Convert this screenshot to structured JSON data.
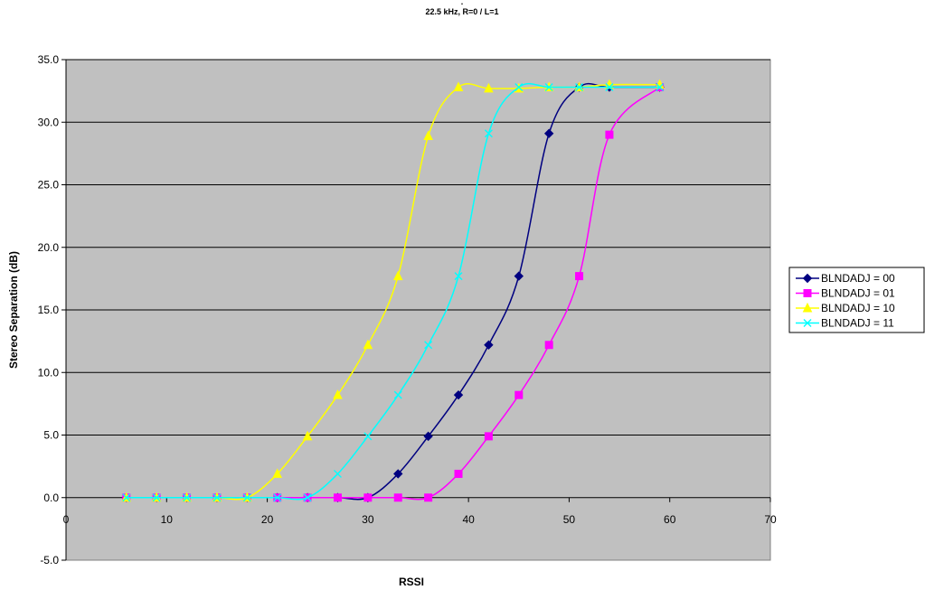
{
  "chart_data": {
    "type": "line",
    "title": ".",
    "subtitle": "22.5 kHz, R=0 / L=1",
    "xlabel": "RSSI",
    "ylabel": "Stereo Separation (dB)",
    "xlim": [
      0,
      70
    ],
    "ylim": [
      -5,
      35
    ],
    "x_ticks": [
      0,
      10,
      20,
      30,
      40,
      50,
      60,
      70
    ],
    "y_ticks": [
      -5,
      0,
      5,
      10,
      15,
      20,
      25,
      30,
      35
    ],
    "x_tick_labels": [
      "0",
      "10",
      "20",
      "30",
      "40",
      "50",
      "60",
      "70"
    ],
    "y_tick_labels": [
      "-5.0",
      "0.0",
      "5.0",
      "10.0",
      "15.0",
      "20.0",
      "25.0",
      "30.0",
      "35.0"
    ],
    "grid": "horizontal",
    "legend_position": "right",
    "plot_background": "#c0c0c0",
    "series": [
      {
        "name": "BLNDADJ = 00",
        "color": "#000080",
        "marker": "diamond",
        "x": [
          6,
          9,
          12,
          15,
          18,
          21,
          24,
          27,
          30,
          33,
          36,
          39,
          42,
          45,
          48,
          51,
          54,
          59
        ],
        "y": [
          0,
          0,
          0,
          0,
          0,
          0,
          0,
          0,
          0,
          1.9,
          4.9,
          8.2,
          12.2,
          17.7,
          29.1,
          32.8,
          32.8,
          32.8
        ]
      },
      {
        "name": "BLNDADJ = 01",
        "color": "#ff00ff",
        "marker": "square",
        "x": [
          6,
          9,
          12,
          15,
          18,
          21,
          24,
          27,
          30,
          33,
          36,
          39,
          42,
          45,
          48,
          51,
          54,
          59
        ],
        "y": [
          0,
          0,
          0,
          0,
          0,
          0,
          0,
          0,
          0,
          0,
          0,
          1.9,
          4.9,
          8.2,
          12.2,
          17.7,
          29.0,
          32.8
        ]
      },
      {
        "name": "BLNDADJ = 10",
        "color": "#ffff00",
        "marker": "triangle",
        "x": [
          6,
          9,
          12,
          15,
          18,
          21,
          24,
          27,
          30,
          33,
          36,
          39,
          42,
          45,
          48,
          51,
          54,
          59
        ],
        "y": [
          0,
          0,
          0,
          0,
          0,
          1.9,
          4.9,
          8.2,
          12.2,
          17.7,
          28.9,
          32.8,
          32.7,
          32.7,
          32.8,
          32.8,
          33.0,
          33.0
        ]
      },
      {
        "name": "BLNDADJ = 11",
        "color": "#00ffff",
        "marker": "x",
        "x": [
          6,
          9,
          12,
          15,
          18,
          21,
          24,
          27,
          30,
          33,
          36,
          39,
          42,
          45,
          48,
          51,
          54,
          59
        ],
        "y": [
          0,
          0,
          0,
          0,
          0,
          0,
          0,
          1.9,
          4.9,
          8.2,
          12.2,
          17.7,
          29.1,
          32.8,
          32.8,
          32.8,
          32.8,
          32.8
        ]
      }
    ]
  }
}
